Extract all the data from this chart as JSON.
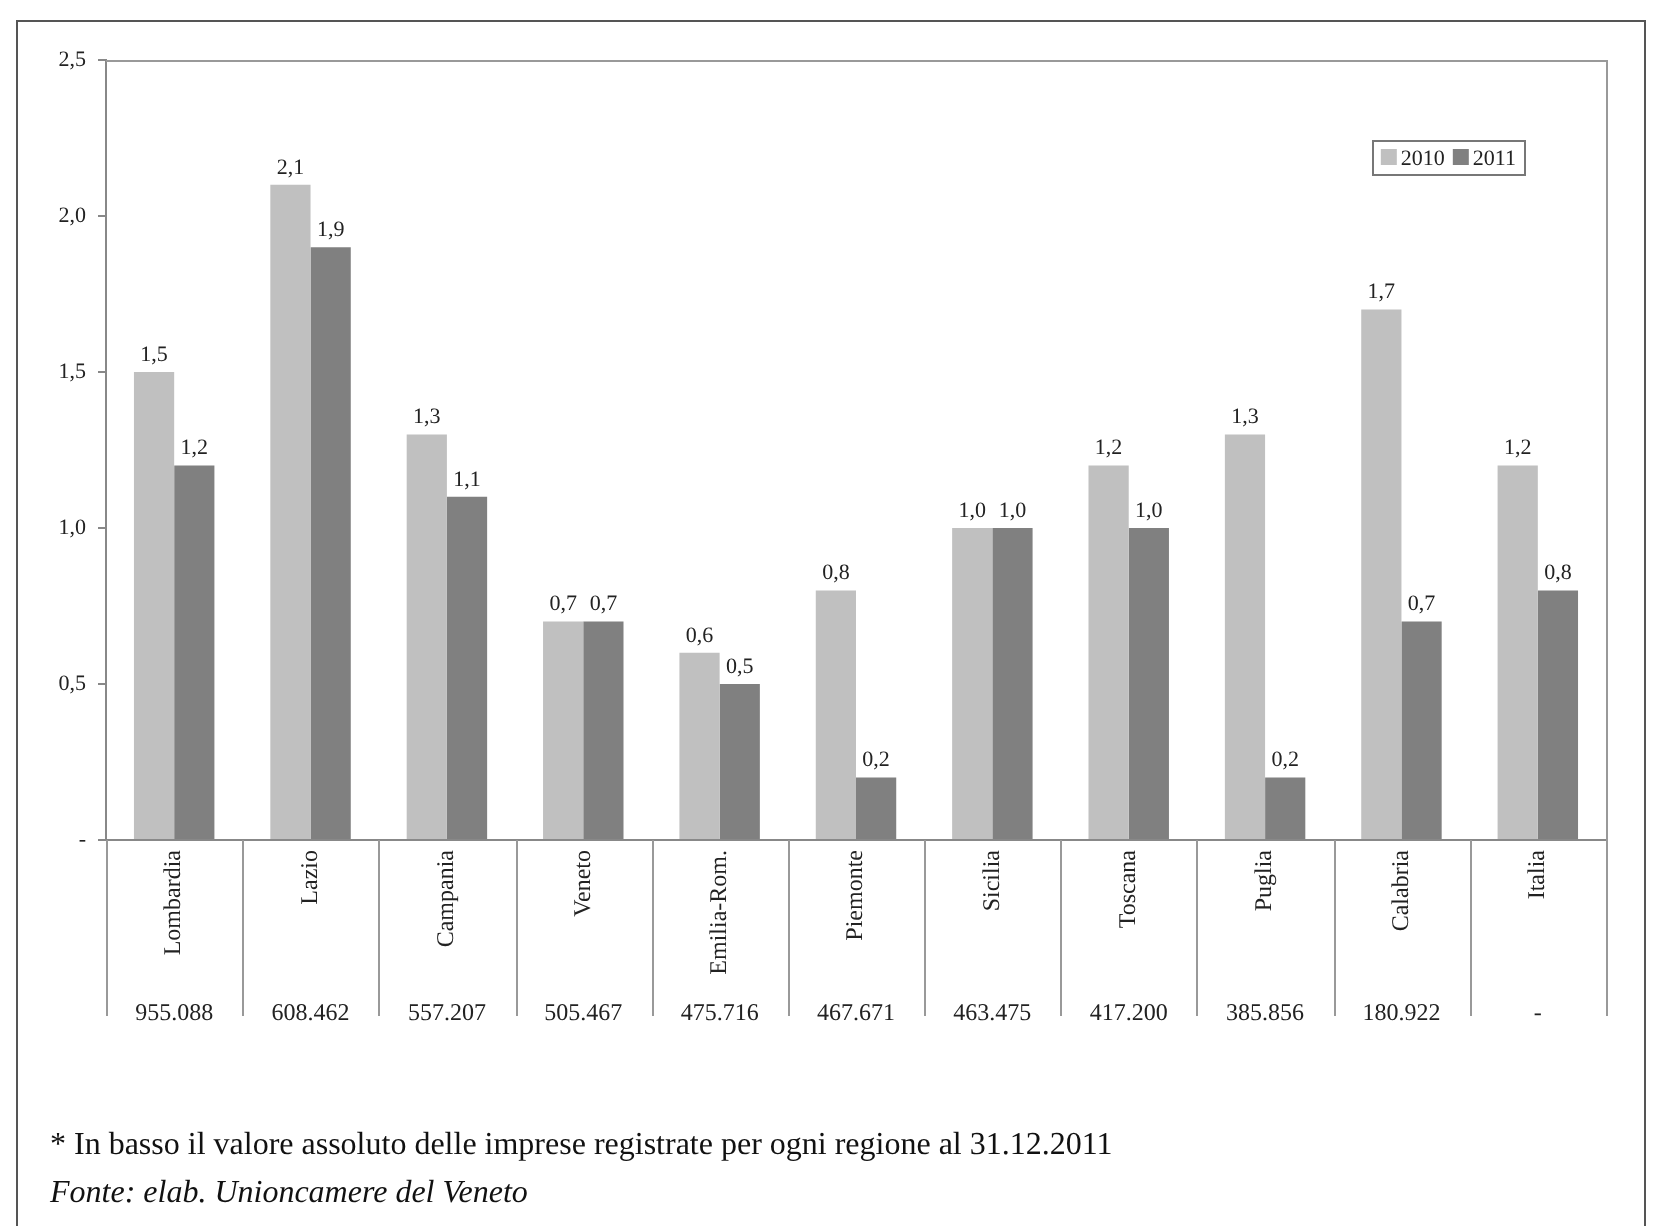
{
  "chart_data": {
    "type": "bar",
    "categories": [
      "Lombardia",
      "Lazio",
      "Campania",
      "Veneto",
      "Emilia-Rom.",
      "Piemonte",
      "Sicilia",
      "Toscana",
      "Puglia",
      "Calabria",
      "Italia"
    ],
    "series": [
      {
        "name": "2010",
        "color": "#c0c0c0",
        "values": [
          1.5,
          2.1,
          1.3,
          0.7,
          0.6,
          0.8,
          1.0,
          1.2,
          1.3,
          1.7,
          1.2
        ],
        "value_labels": [
          "1,5",
          "2,1",
          "1,3",
          "0,7",
          "0,6",
          "0,8",
          "1,0",
          "1,2",
          "1,3",
          "1,7",
          "1,2"
        ]
      },
      {
        "name": "2011",
        "color": "#808080",
        "values": [
          1.2,
          1.9,
          1.1,
          0.7,
          0.5,
          0.2,
          1.0,
          1.0,
          0.2,
          0.7,
          0.8
        ],
        "value_labels": [
          "1,2",
          "1,9",
          "1,1",
          "0,7",
          "0,5",
          "0,2",
          "1,0",
          "1,0",
          "0,2",
          "0,7",
          "0,8"
        ]
      }
    ],
    "ylim": [
      0,
      2.5
    ],
    "yticks": [
      {
        "value": 0,
        "label": "-"
      },
      {
        "value": 0.5,
        "label": "0,5"
      },
      {
        "value": 1.0,
        "label": "1,0"
      },
      {
        "value": 1.5,
        "label": "1,5"
      },
      {
        "value": 2.0,
        "label": "2,0"
      },
      {
        "value": 2.5,
        "label": "2,5"
      }
    ],
    "legend": "top right",
    "annotations": [
      "955.088",
      "608.462",
      "557.207",
      "505.467",
      "475.716",
      "467.671",
      "463.475",
      "417.200",
      "385.856",
      "180.922",
      "-",
      "* In basso il valore assoluto delle imprese registrate per ogni regione al 31.12.2011",
      "Fonte: elab. Unioncamere del Veneto"
    ]
  }
}
